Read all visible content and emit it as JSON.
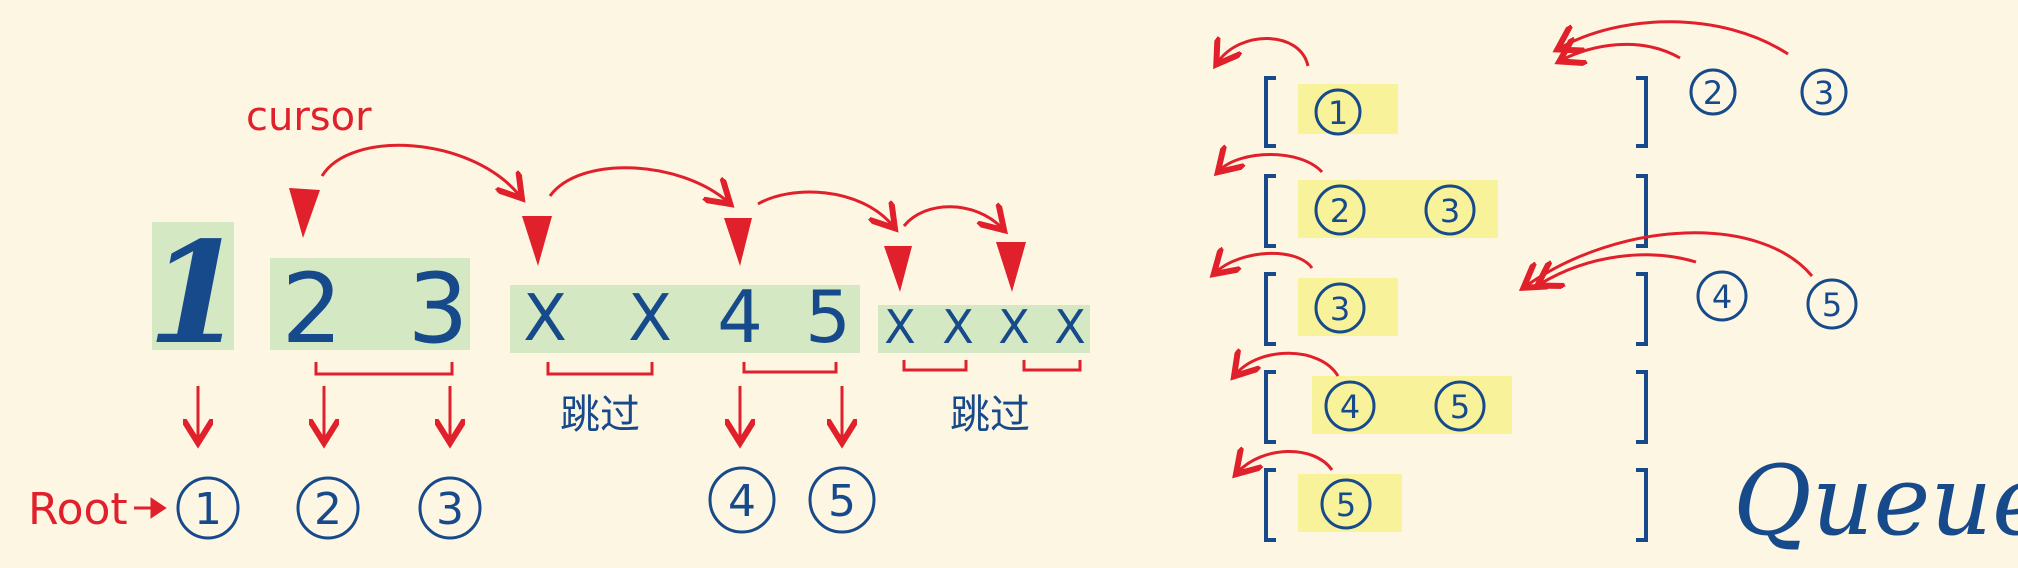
{
  "colors": {
    "background": "#fdf6e3",
    "ink_blue": "#174a8b",
    "ink_red": "#e0202a",
    "highlight_green": "#d5e8c4",
    "highlight_yellow": "#f8f29a"
  },
  "labels": {
    "cursor": "cursor",
    "root": "Root",
    "queue": "Queue",
    "skip_1": "跳过",
    "skip_2": "跳过"
  },
  "array": {
    "root_value": "1",
    "group_a": [
      "2",
      "3"
    ],
    "group_b": [
      "X",
      "X",
      "4",
      "5"
    ],
    "group_c": [
      "X",
      "X",
      "X",
      "X"
    ]
  },
  "tree_nodes": [
    "1",
    "2",
    "3",
    "4",
    "5"
  ],
  "queue_steps": [
    {
      "queue": [
        "1"
      ],
      "incoming": [
        "2",
        "3"
      ]
    },
    {
      "queue": [
        "2",
        "3"
      ],
      "incoming": []
    },
    {
      "queue": [
        "3"
      ],
      "incoming": [
        "4",
        "5"
      ]
    },
    {
      "queue": [
        "4",
        "5"
      ],
      "incoming": []
    },
    {
      "queue": [
        "5"
      ],
      "incoming": []
    }
  ]
}
